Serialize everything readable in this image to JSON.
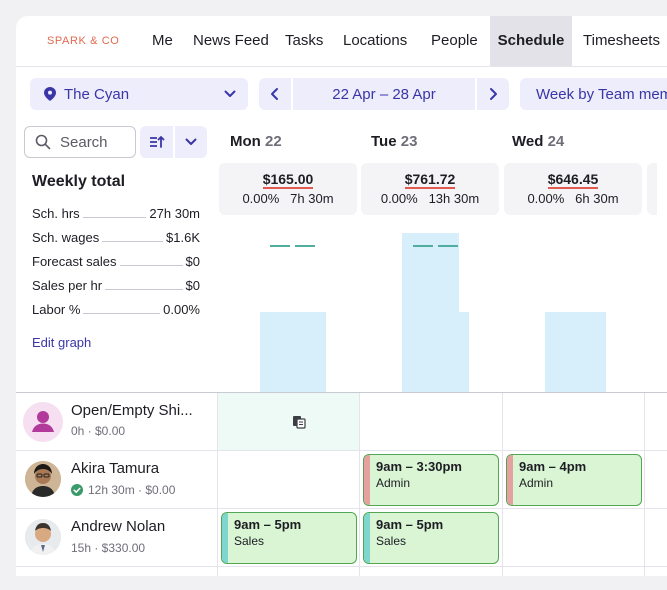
{
  "nav": {
    "logo": "SPARK & CO",
    "tabs": [
      {
        "label": "Me"
      },
      {
        "label": "News Feed"
      },
      {
        "label": "Tasks"
      },
      {
        "label": "Locations"
      },
      {
        "label": "People"
      },
      {
        "label": "Schedule",
        "active": true
      },
      {
        "label": "Timesheets"
      }
    ]
  },
  "toolbar": {
    "location": "The Cyan",
    "date_range": "22 Apr – 28 Apr",
    "view": "Week by Team member",
    "search_placeholder": "Search"
  },
  "weekly": {
    "title": "Weekly total",
    "rows": [
      {
        "label": "Sch. hrs",
        "value": "27h 30m"
      },
      {
        "label": "Sch. wages",
        "value": "$1.6K"
      },
      {
        "label": "Forecast sales",
        "value": "$0"
      },
      {
        "label": "Sales per hr",
        "value": "$0"
      },
      {
        "label": "Labor %",
        "value": "0.00%"
      }
    ],
    "edit_graph": "Edit graph"
  },
  "days": [
    {
      "name": "Mon",
      "num": "22",
      "amount": "$165.00",
      "pct": "0.00%",
      "hours": "7h 30m",
      "level": 0.48
    },
    {
      "name": "Tue",
      "num": "23",
      "amount": "$761.72",
      "pct": "0.00%",
      "hours": "13h 30m",
      "level": 0.96
    },
    {
      "name": "Wed",
      "num": "24",
      "amount": "$646.45",
      "pct": "0.00%",
      "hours": "6h 30m",
      "level": 0.48
    }
  ],
  "people": [
    {
      "name": "Open/Empty Shi...",
      "meta": "0h · $0.00"
    },
    {
      "name": "Akira Tamura",
      "meta": "12h 30m · $0.00"
    },
    {
      "name": "Andrew Nolan",
      "meta": "15h · $330.00"
    }
  ],
  "shifts": [
    {
      "time": "9am – 3:30pm",
      "role": "Admin"
    },
    {
      "time": "9am – 4pm",
      "role": "Admin"
    },
    {
      "time": "9am – 5pm",
      "role": "Sales"
    },
    {
      "time": "9am – 5pm",
      "role": "Sales"
    }
  ],
  "colors": {
    "accent": "#3a36a8",
    "logo": "#e06a4f",
    "shift_fill": "#d9f5d3",
    "shift_border": "#53a653",
    "admin_stripe": "#e7a0a0",
    "sales_stripe": "#7fd6cf",
    "graph_bar": "#d7eefb",
    "graph_dash": "#4fae9e"
  }
}
